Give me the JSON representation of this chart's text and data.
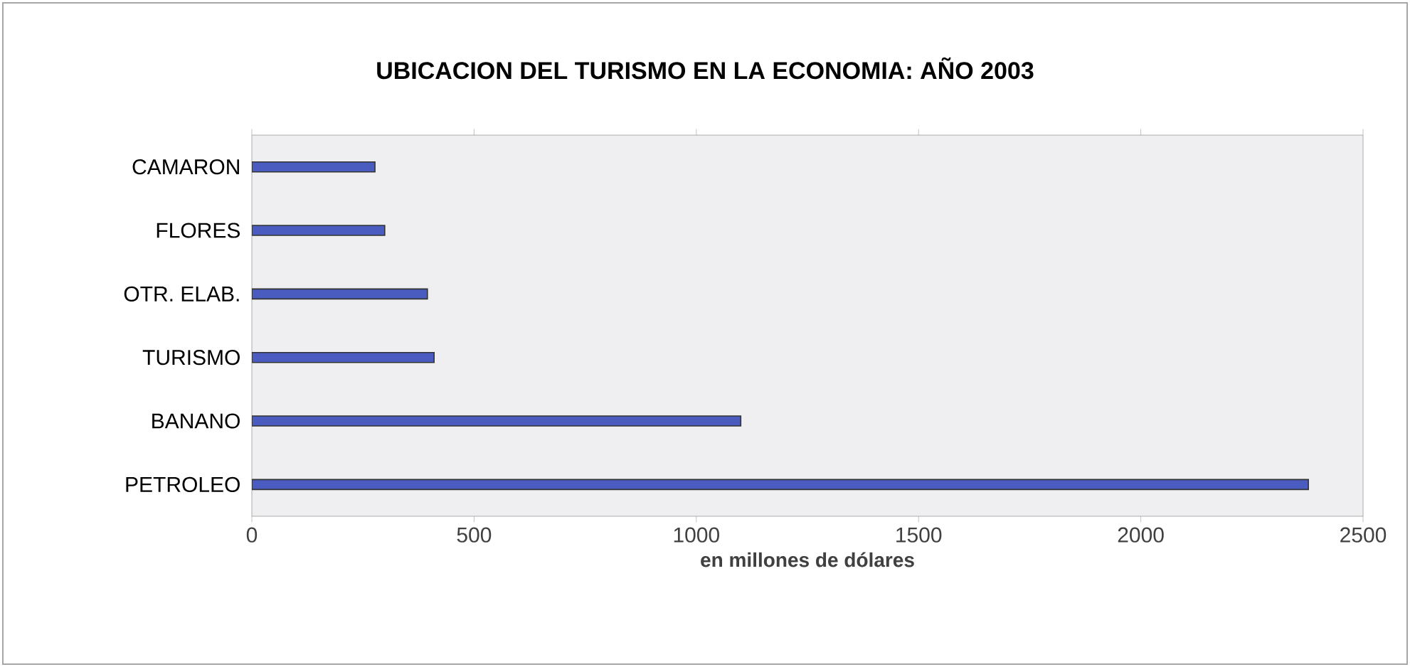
{
  "chart_data": {
    "type": "bar",
    "orientation": "horizontal",
    "title": "UBICACION DEL TURISMO EN LA ECONOMIA: AÑO 2003",
    "xlabel": "en millones de dólares",
    "categories": [
      "CAMARON",
      "FLORES",
      "OTR. ELAB.",
      "TURISMO",
      "BANANO",
      "PETROLEO"
    ],
    "values": [
      277,
      299,
      395,
      410,
      1100,
      2377
    ],
    "color": "#4a5cc0",
    "xlim": [
      0,
      2500
    ],
    "xticks": [
      0,
      500,
      1000,
      1500,
      2000,
      2500
    ],
    "grid": false
  }
}
